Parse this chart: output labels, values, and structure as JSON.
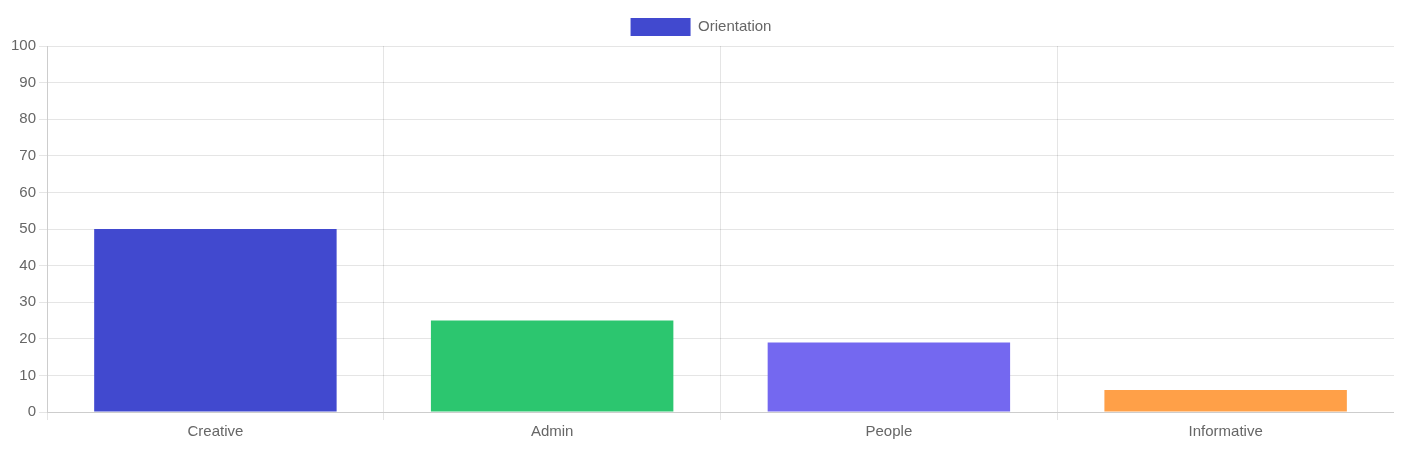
{
  "chart_data": {
    "type": "bar",
    "categories": [
      "Creative",
      "Admin",
      "People",
      "Informative"
    ],
    "series": [
      {
        "name": "Orientation",
        "colors": [
          "#4149cf",
          "#2cc66f",
          "#7468f0",
          "#ffa048"
        ],
        "values": [
          50,
          25,
          19,
          6
        ]
      }
    ],
    "ylim": [
      0,
      100
    ],
    "yticks": [
      0,
      10,
      20,
      30,
      40,
      50,
      60,
      70,
      80,
      90,
      100
    ],
    "grid": true,
    "legend": "top"
  }
}
